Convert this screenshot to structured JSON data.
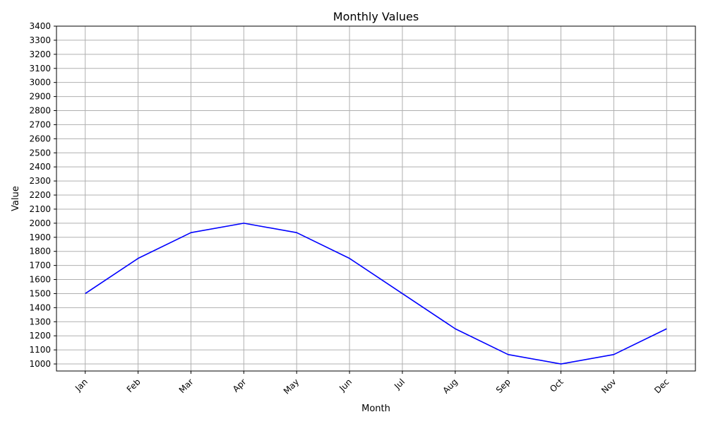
{
  "chart_data": {
    "type": "line",
    "title": "Monthly Values",
    "xlabel": "Month",
    "ylabel": "Value",
    "categories": [
      "Jan",
      "Feb",
      "Mar",
      "Apr",
      "May",
      "Jun",
      "Jul",
      "Aug",
      "Sep",
      "Oct",
      "Nov",
      "Dec"
    ],
    "series": [
      {
        "values": [
          1500,
          1750,
          1933,
          2000,
          1933,
          1750,
          1500,
          1250,
          1067,
          1000,
          1067,
          1250
        ],
        "color": "#0000ff"
      }
    ],
    "ylim": [
      950,
      3400
    ],
    "yticks": [
      1000,
      1100,
      1200,
      1300,
      1400,
      1500,
      1600,
      1700,
      1800,
      1900,
      2000,
      2100,
      2200,
      2300,
      2400,
      2500,
      2600,
      2700,
      2800,
      2900,
      3000,
      3100,
      3200,
      3300,
      3400
    ],
    "grid": true,
    "x_tick_rotation_deg": 45
  }
}
